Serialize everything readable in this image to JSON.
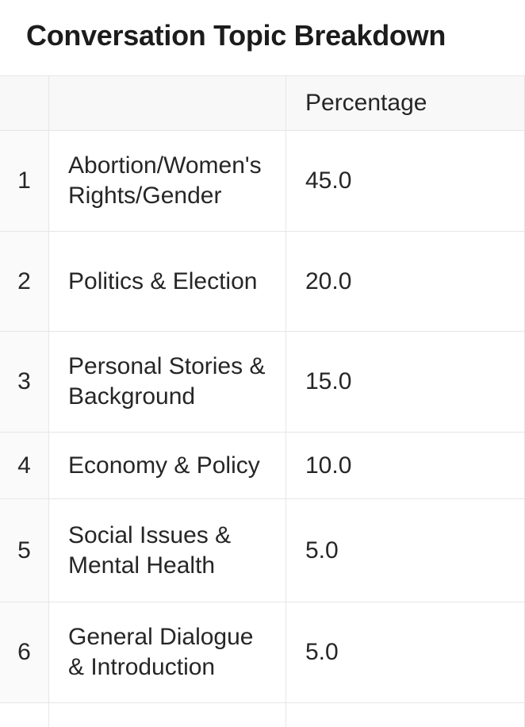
{
  "page": {
    "title": "Conversation Topic Breakdown"
  },
  "table": {
    "header": {
      "index_label": "",
      "topic_label": "",
      "percentage_label": "Percentage"
    },
    "rows": [
      {
        "index": "1",
        "topic": "Abortion/Women's Rights/Gender",
        "percentage": "45.0"
      },
      {
        "index": "2",
        "topic": "Politics & Election",
        "percentage": "20.0"
      },
      {
        "index": "3",
        "topic": "Personal Stories & Background",
        "percentage": "15.0"
      },
      {
        "index": "4",
        "topic": "Economy & Policy",
        "percentage": "10.0"
      },
      {
        "index": "5",
        "topic": "Social Issues & Mental Health",
        "percentage": "5.0"
      },
      {
        "index": "6",
        "topic": "General Dialogue & Introduction",
        "percentage": "5.0"
      }
    ]
  },
  "chart_data": {
    "type": "table",
    "title": "Conversation Topic Breakdown",
    "columns": [
      "",
      "Percentage"
    ],
    "categories": [
      "Abortion/Women's Rights/Gender",
      "Politics & Election",
      "Personal Stories & Background",
      "Economy & Policy",
      "Social Issues & Mental Health",
      "General Dialogue & Introduction"
    ],
    "values": [
      45.0,
      20.0,
      15.0,
      10.0,
      5.0,
      5.0
    ]
  },
  "colors": {
    "background": "#ffffff",
    "header_background": "#f8f8f8",
    "index_column_background": "#fafafa",
    "border": "#e6e6e6",
    "text": "#262626",
    "title_text": "#1c1c1c"
  }
}
